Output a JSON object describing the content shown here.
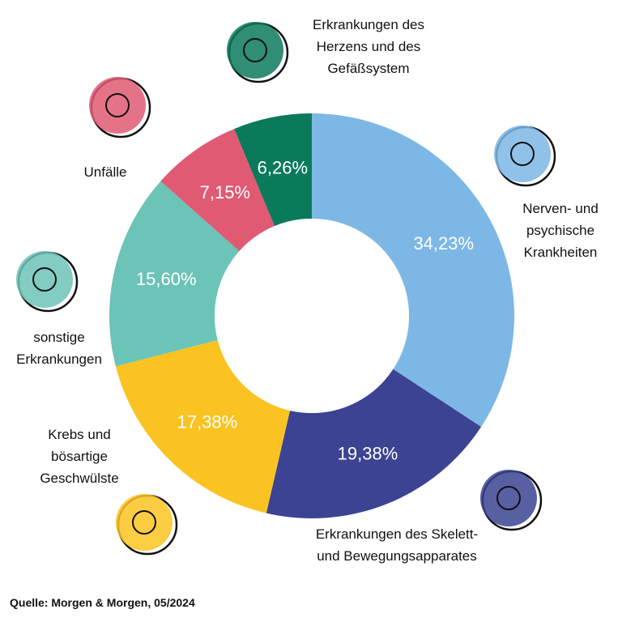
{
  "chart_data": {
    "type": "donut",
    "categories": [
      "Nerven- und psychische Krankheiten",
      "Erkrankungen des Skelett- und Bewegungsapparates",
      "Krebs und bösartige Geschwülste",
      "sonstige Erkrankungen",
      "Unfälle",
      "Erkrankungen des Herzens und des Gefäßsystem"
    ],
    "values": [
      34.23,
      19.38,
      17.38,
      15.6,
      7.15,
      6.26
    ],
    "value_labels": [
      "34,23%",
      "19,38%",
      "17,38%",
      "15,60%",
      "7,15%",
      "6,26%"
    ],
    "colors": [
      "#7db7e5",
      "#3b4392",
      "#fbc321",
      "#6cc3b8",
      "#e05a73",
      "#0b7a5b"
    ],
    "source": "Quelle: Morgen & Morgen, 05/2024"
  }
}
